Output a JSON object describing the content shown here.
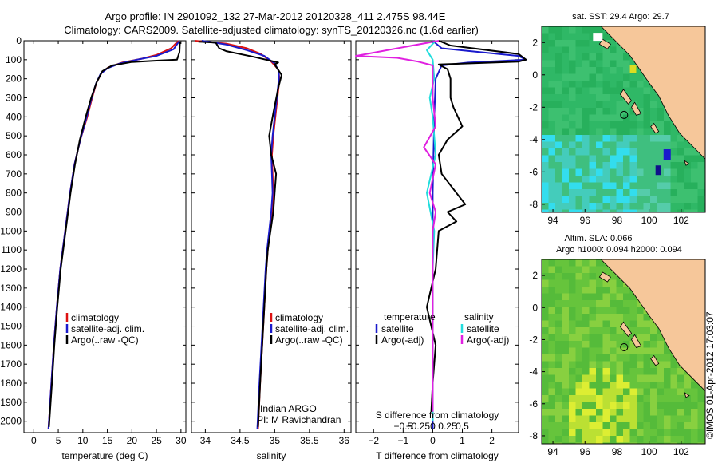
{
  "header": {
    "title_line1": "Argo profile: IN 2901092_132 27-Mar-2012 20120328_411 2.475S 98.44E",
    "title_line2": "Climatology: CARS2009. Satellite-adjusted climatology: synTS_20120326.nc (1.6d earlier)"
  },
  "colors": {
    "climatology": "#dd1111",
    "satellite": "#1a1acc",
    "argo": "#000000",
    "salinity_sat": "#22dddd",
    "salinity_argo": "#e020e0",
    "land": "#f6c79a"
  },
  "chart_data": [
    {
      "type": "line",
      "panel": "temperature",
      "xlabel": "temperature (deg C)",
      "ylabel": "",
      "xlim": [
        -2,
        31
      ],
      "ylim": [
        2060,
        0
      ],
      "y_reversed": true,
      "x_ticks": [
        0,
        5,
        10,
        15,
        20,
        25,
        30
      ],
      "x_tick_labels": [
        "0",
        "5",
        "10",
        "15",
        "20",
        "25",
        "30"
      ],
      "y_ticks": [
        0,
        100,
        200,
        300,
        400,
        500,
        600,
        700,
        800,
        900,
        1000,
        1100,
        1200,
        1300,
        1400,
        1500,
        1600,
        1700,
        1800,
        1900,
        2000
      ],
      "y_tick_labels": [
        "0",
        "100",
        "200",
        "300",
        "400",
        "500",
        "600",
        "700",
        "800",
        "900",
        "1000",
        "1100",
        "1200",
        "1300",
        "1400",
        "1500",
        "1600",
        "1700",
        "1800",
        "1900",
        "2000"
      ],
      "legend": [
        "climatology",
        "satellite-adj. clim.",
        "Argo(..raw -QC)"
      ],
      "legend_position": "lower-center",
      "series": [
        {
          "name": "climatology",
          "color": "#dd1111",
          "points": [
            [
              29.5,
              0
            ],
            [
              28,
              40
            ],
            [
              25,
              75
            ],
            [
              22,
              95
            ],
            [
              18,
              115
            ],
            [
              15.2,
              140
            ],
            [
              13.8,
              170
            ],
            [
              12.8,
              220
            ],
            [
              11.9,
              300
            ],
            [
              10.9,
              400
            ],
            [
              9.5,
              520
            ],
            [
              8.3,
              650
            ],
            [
              7.4,
              800
            ],
            [
              6.4,
              1000
            ],
            [
              5.4,
              1200
            ],
            [
              4.7,
              1400
            ],
            [
              4.1,
              1600
            ],
            [
              3.6,
              1800
            ],
            [
              3.0,
              2040
            ]
          ]
        },
        {
          "name": "satellite-adj. clim.",
          "color": "#1a1acc",
          "points": [
            [
              29.7,
              0
            ],
            [
              28.5,
              45
            ],
            [
              25,
              80
            ],
            [
              21,
              100
            ],
            [
              17.5,
              120
            ],
            [
              15,
              145
            ],
            [
              13.6,
              175
            ],
            [
              12.7,
              225
            ],
            [
              11.8,
              300
            ],
            [
              10.8,
              400
            ],
            [
              9.5,
              520
            ],
            [
              8.3,
              650
            ],
            [
              7.4,
              800
            ],
            [
              6.4,
              1000
            ],
            [
              5.4,
              1200
            ],
            [
              4.7,
              1400
            ],
            [
              4.1,
              1600
            ],
            [
              3.6,
              1800
            ],
            [
              3.0,
              2040
            ]
          ]
        },
        {
          "name": "Argo(..raw -QC)",
          "color": "#000000",
          "points": [
            [
              29.8,
              5
            ],
            [
              29.7,
              60
            ],
            [
              29.2,
              100
            ],
            [
              25,
              105
            ],
            [
              20,
              112
            ],
            [
              16,
              130
            ],
            [
              14,
              160
            ],
            [
              12.8,
              220
            ],
            [
              11.7,
              300
            ],
            [
              10.6,
              400
            ],
            [
              9.4,
              520
            ],
            [
              8.4,
              650
            ],
            [
              7.5,
              800
            ],
            [
              6.5,
              1000
            ],
            [
              5.5,
              1200
            ],
            [
              4.8,
              1400
            ],
            [
              4.2,
              1600
            ],
            [
              3.7,
              1800
            ],
            [
              3.1,
              2030
            ]
          ]
        }
      ]
    },
    {
      "type": "line",
      "panel": "salinity",
      "xlabel": "salinity",
      "xlim": [
        33.8,
        36.1
      ],
      "ylim": [
        2060,
        0
      ],
      "y_reversed": true,
      "x_ticks": [
        34,
        34.5,
        35,
        35.5,
        36
      ],
      "x_tick_labels": [
        "34",
        "34.5",
        "35",
        "35.5",
        "36"
      ],
      "legend": [
        "climatology",
        "satellite-adj. clim.",
        "Argo(..raw -QC)"
      ],
      "legend_position": "lower-right",
      "annotation_line1": "Indian ARGO",
      "annotation_line2": "PI: M Ravichandran",
      "series": [
        {
          "name": "climatology",
          "color": "#dd1111",
          "points": [
            [
              33.85,
              0
            ],
            [
              34.3,
              15
            ],
            [
              34.6,
              40
            ],
            [
              34.8,
              70
            ],
            [
              34.95,
              110
            ],
            [
              35.05,
              150
            ],
            [
              35.07,
              200
            ],
            [
              35.04,
              300
            ],
            [
              35.01,
              400
            ],
            [
              34.98,
              500
            ],
            [
              34.96,
              600
            ],
            [
              34.97,
              700
            ],
            [
              34.98,
              800
            ],
            [
              34.96,
              900
            ],
            [
              34.93,
              1000
            ],
            [
              34.9,
              1100
            ],
            [
              34.88,
              1200
            ],
            [
              34.85,
              1400
            ],
            [
              34.82,
              1600
            ],
            [
              34.79,
              1800
            ],
            [
              34.76,
              2040
            ]
          ]
        },
        {
          "name": "satellite-adj. clim.",
          "color": "#1a1acc",
          "points": [
            [
              33.95,
              0
            ],
            [
              34.3,
              20
            ],
            [
              34.6,
              50
            ],
            [
              34.85,
              80
            ],
            [
              35.0,
              120
            ],
            [
              35.06,
              160
            ],
            [
              35.06,
              200
            ],
            [
              35.03,
              300
            ],
            [
              35.0,
              400
            ],
            [
              34.97,
              500
            ],
            [
              34.95,
              600
            ],
            [
              34.96,
              700
            ],
            [
              34.97,
              800
            ],
            [
              34.95,
              900
            ],
            [
              34.92,
              1000
            ],
            [
              34.89,
              1100
            ],
            [
              34.87,
              1200
            ],
            [
              34.84,
              1400
            ],
            [
              34.81,
              1600
            ],
            [
              34.78,
              1800
            ],
            [
              34.75,
              2040
            ]
          ]
        },
        {
          "name": "Argo(..raw -QC)",
          "color": "#000000",
          "points": [
            [
              33.9,
              5
            ],
            [
              34.15,
              10
            ],
            [
              34.2,
              40
            ],
            [
              34.3,
              55
            ],
            [
              34.7,
              85
            ],
            [
              35.05,
              115
            ],
            [
              35.0,
              125
            ],
            [
              35.1,
              180
            ],
            [
              35.05,
              250
            ],
            [
              34.98,
              380
            ],
            [
              34.92,
              500
            ],
            [
              34.95,
              600
            ],
            [
              35.02,
              700
            ],
            [
              35.0,
              800
            ],
            [
              34.98,
              900
            ],
            [
              34.94,
              1000
            ],
            [
              34.9,
              1100
            ],
            [
              34.88,
              1200
            ],
            [
              34.85,
              1400
            ],
            [
              34.82,
              1600
            ],
            [
              34.79,
              1800
            ],
            [
              34.76,
              2030
            ]
          ]
        }
      ]
    },
    {
      "type": "line",
      "panel": "difference",
      "xlabel": "T difference from climatology",
      "xlabel_top": "S difference from climatology",
      "xlim": [
        -2.6,
        2.9
      ],
      "ylim": [
        2060,
        0
      ],
      "y_reversed": true,
      "x_ticks": [
        -2,
        -1,
        0,
        1,
        2
      ],
      "x_tick_labels": [
        "−2",
        "−1",
        "0",
        "1",
        "2"
      ],
      "x_ticks_top": [
        -0.5,
        -0.25,
        0,
        0.25,
        0.5
      ],
      "x_tick_labels_top": [
        "−0.5",
        "−0.25",
        "0",
        "0.25",
        "0.5"
      ],
      "legend_headings": [
        "temperature",
        "salinity"
      ],
      "legend": [
        "satellite",
        "Argo(-adj)",
        "satellite",
        "Argo(-adj)"
      ],
      "legend_position": "lower-center",
      "series": [
        {
          "name": "satellite",
          "quantity": "temperature",
          "color": "#1a1acc",
          "points": [
            [
              0,
              0
            ],
            [
              0.3,
              40
            ],
            [
              2.9,
              80
            ],
            [
              3.2,
              100
            ],
            [
              1.2,
              115
            ],
            [
              0.3,
              130
            ],
            [
              0.1,
              200
            ],
            [
              0.05,
              400
            ],
            [
              0,
              800
            ],
            [
              0,
              1200
            ],
            [
              0,
              1600
            ],
            [
              0,
              2040
            ]
          ]
        },
        {
          "name": "Argo(-adj)",
          "quantity": "temperature",
          "color": "#000000",
          "points": [
            [
              0.2,
              0
            ],
            [
              0.6,
              25
            ],
            [
              2.9,
              70
            ],
            [
              3.3,
              100
            ],
            [
              2.9,
              110
            ],
            [
              0.2,
              125
            ],
            [
              0.5,
              150
            ],
            [
              0.6,
              200
            ],
            [
              0.6,
              300
            ],
            [
              0.7,
              350
            ],
            [
              1.0,
              450
            ],
            [
              0.5,
              520
            ],
            [
              0.2,
              600
            ],
            [
              0.3,
              700
            ],
            [
              0.8,
              800
            ],
            [
              1.1,
              860
            ],
            [
              0.5,
              900
            ],
            [
              0.8,
              950
            ],
            [
              0.2,
              1000
            ],
            [
              0.1,
              1200
            ],
            [
              -0.2,
              1400
            ],
            [
              0.1,
              1600
            ],
            [
              0,
              1800
            ],
            [
              -0.05,
              1950
            ]
          ]
        },
        {
          "name": "satellite",
          "quantity": "salinity",
          "color": "#22dddd",
          "points": [
            [
              0.1,
              0
            ],
            [
              -0.2,
              50
            ],
            [
              0,
              100
            ],
            [
              0.05,
              200
            ],
            [
              -0.1,
              300
            ],
            [
              0,
              400
            ],
            [
              0.1,
              600
            ],
            [
              -0.2,
              800
            ],
            [
              0.05,
              1000
            ],
            [
              0,
              1200
            ],
            [
              0,
              1600
            ],
            [
              0,
              2000
            ]
          ]
        },
        {
          "name": "Argo(-adj)",
          "quantity": "salinity",
          "color": "#e020e0",
          "points": [
            [
              0.2,
              0
            ],
            [
              -2.6,
              80
            ],
            [
              -1.2,
              90
            ],
            [
              -0.5,
              110
            ],
            [
              0,
              130
            ],
            [
              0,
              300
            ],
            [
              0.1,
              450
            ],
            [
              -0.3,
              560
            ],
            [
              0.1,
              650
            ],
            [
              -0.1,
              800
            ],
            [
              0.1,
              900
            ],
            [
              0,
              1000
            ],
            [
              0,
              1600
            ],
            [
              0,
              1950
            ]
          ]
        }
      ]
    },
    {
      "type": "heatmap",
      "panel": "sst-map",
      "title": "sat. SST: 29.4  Argo: 29.7",
      "xlim": [
        93.3,
        103.5
      ],
      "ylim": [
        -8.5,
        3.0
      ],
      "x_ticks": [
        94,
        96,
        98,
        100,
        102
      ],
      "x_tick_labels": [
        "94",
        "96",
        "98",
        "100",
        "102"
      ],
      "y_ticks": [
        2,
        0,
        -2,
        -4,
        -6,
        -8
      ],
      "y_tick_labels": [
        "2",
        "0",
        "-2",
        "-4",
        "-6",
        "-8"
      ],
      "argo_location": [
        98.44,
        -2.475
      ]
    },
    {
      "type": "heatmap",
      "panel": "sla-map",
      "title": "Altim. SLA: 0.066",
      "subtitle": "Argo h1000: 0.094  h2000: 0.094",
      "xlim": [
        93.3,
        103.5
      ],
      "ylim": [
        -8.5,
        3.0
      ],
      "x_ticks": [
        94,
        96,
        98,
        100,
        102
      ],
      "x_tick_labels": [
        "94",
        "96",
        "98",
        "100",
        "102"
      ],
      "y_ticks": [
        2,
        0,
        -2,
        -4,
        -6,
        -8
      ],
      "y_tick_labels": [
        "2",
        "0",
        "-2",
        "-4",
        "-6",
        "-8"
      ],
      "argo_location": [
        98.44,
        -2.475
      ]
    }
  ],
  "footer": {
    "stamp": "©IMOS 01-Apr-2012 17:03:07"
  }
}
